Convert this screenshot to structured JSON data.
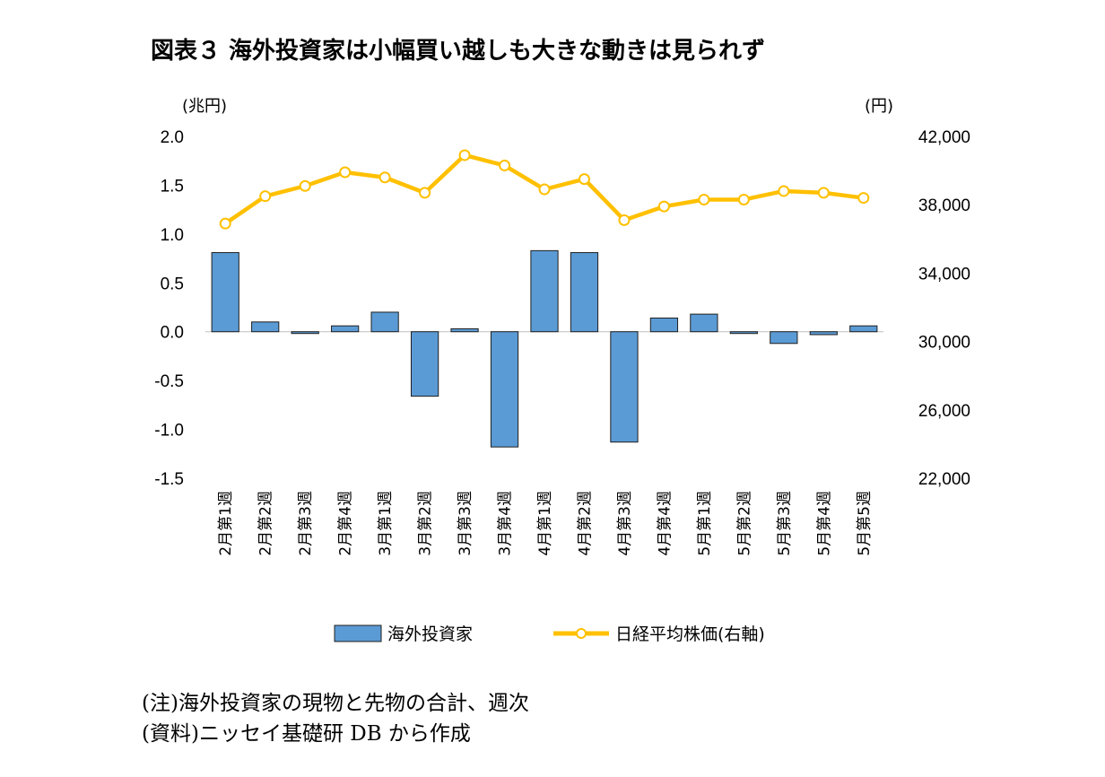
{
  "title": "図表３ 海外投資家は小幅買い越しも大きな動きは見られず",
  "notes": [
    "(注)海外投資家の現物と先物の合計、週次",
    "(資料)ニッセイ基礎研 DB から作成"
  ],
  "colors": {
    "bar_fill": "#5b9bd5",
    "bar_stroke": "#1f1f1f",
    "line": "#ffc000",
    "marker_fill": "#ffffff"
  },
  "chart_data": {
    "type": "bar",
    "categories": [
      "2月第1週",
      "2月第2週",
      "2月第3週",
      "2月第4週",
      "3月第1週",
      "3月第2週",
      "3月第3週",
      "3月第4週",
      "4月第1週",
      "4月第2週",
      "4月第3週",
      "4月第4週",
      "5月第1週",
      "5月第2週",
      "5月第3週",
      "5月第4週",
      "5月第5週"
    ],
    "left_axis": {
      "unit_label": "(兆円)",
      "ylim": [
        -1.5,
        2.0
      ],
      "ticks": [
        "2.0",
        "1.5",
        "1.0",
        "0.5",
        "0.0",
        "-0.5",
        "-1.0",
        "-1.5"
      ],
      "tick_values": [
        2.0,
        1.5,
        1.0,
        0.5,
        0.0,
        -0.5,
        -1.0,
        -1.5
      ]
    },
    "right_axis": {
      "unit_label": "(円)",
      "ylim": [
        22000,
        42000
      ],
      "ticks": [
        "42,000",
        "38,000",
        "34,000",
        "30,000",
        "26,000",
        "22,000"
      ],
      "tick_values": [
        42000,
        38000,
        34000,
        30000,
        26000,
        22000
      ]
    },
    "series": [
      {
        "name": "海外投資家",
        "type": "bar",
        "axis": "left",
        "values": [
          0.81,
          0.1,
          -0.01,
          0.06,
          0.2,
          -0.66,
          0.03,
          -1.18,
          0.83,
          0.81,
          -1.13,
          0.14,
          0.18,
          -0.01,
          -0.12,
          -0.03,
          0.06
        ]
      },
      {
        "name": "日経平均株価(右軸)",
        "type": "line",
        "axis": "right",
        "values": [
          36900,
          38500,
          39100,
          39900,
          39600,
          38700,
          40900,
          40300,
          38900,
          39500,
          37100,
          37900,
          38300,
          38300,
          38800,
          38700,
          38400
        ]
      }
    ],
    "legend": {
      "position": "bottom",
      "items": [
        "海外投資家",
        "日経平均株価(右軸)"
      ]
    },
    "grid": false
  }
}
